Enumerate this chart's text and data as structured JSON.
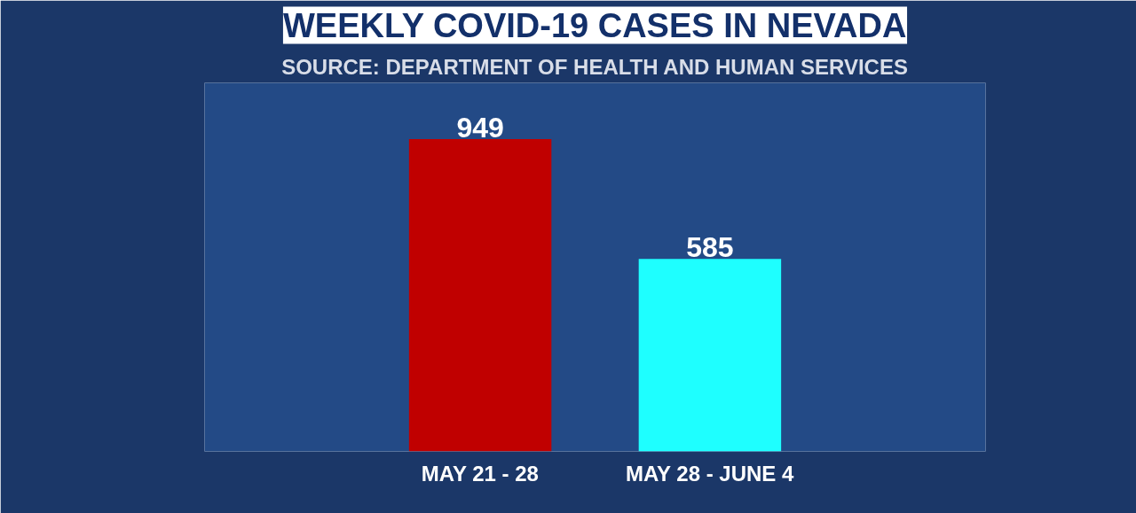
{
  "chart_data": {
    "type": "bar",
    "title": "WEEKLY COVID-19 CASES IN NEVADA",
    "annotations": [
      "SOURCE: DEPARTMENT OF HEALTH AND HUMAN SERVICES"
    ],
    "categories": [
      "MAY 21 - 28",
      "MAY 28 - JUNE 4"
    ],
    "values": [
      949,
      585
    ],
    "colors": [
      "#c00000",
      "#1effff"
    ],
    "data_labels": true
  }
}
